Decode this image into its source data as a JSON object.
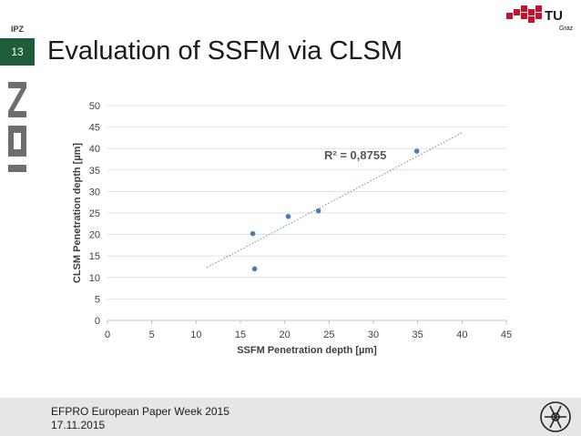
{
  "sidebar": {
    "logo_text": "IPZ",
    "slide_number": "13"
  },
  "title": "Evaluation of SSFM via CLSM",
  "branding": {
    "university": "TU",
    "city": "Graz"
  },
  "footer": {
    "event": "EFPRO European Paper Week 2015",
    "date": "17.11.2015"
  },
  "colors": {
    "accent": "#1f5c3a",
    "points": "#4a7eb7",
    "brand_red": "#c4122f",
    "footer_bg": "#e6e6e6"
  },
  "chart_data": {
    "type": "scatter",
    "title": "",
    "xlabel": "SSFM Penetration depth [µm]",
    "ylabel": "CLSM Penetration depth [µm]",
    "xlim": [
      0,
      45
    ],
    "ylim": [
      0,
      50
    ],
    "xticks": [
      0,
      5,
      10,
      15,
      20,
      25,
      30,
      35,
      40,
      45
    ],
    "yticks": [
      0,
      5,
      10,
      15,
      20,
      25,
      30,
      35,
      40,
      45,
      50
    ],
    "grid": true,
    "points": [
      {
        "x": 16.4,
        "y": 20.2
      },
      {
        "x": 16.6,
        "y": 12.0
      },
      {
        "x": 20.4,
        "y": 24.2
      },
      {
        "x": 23.8,
        "y": 25.5
      },
      {
        "x": 34.9,
        "y": 39.4
      }
    ],
    "trendline": {
      "type": "linear",
      "from": {
        "x": 11.2,
        "y": 12.3
      },
      "to": {
        "x": 40.1,
        "y": 43.8
      },
      "label": "R² = 0,8755"
    }
  }
}
